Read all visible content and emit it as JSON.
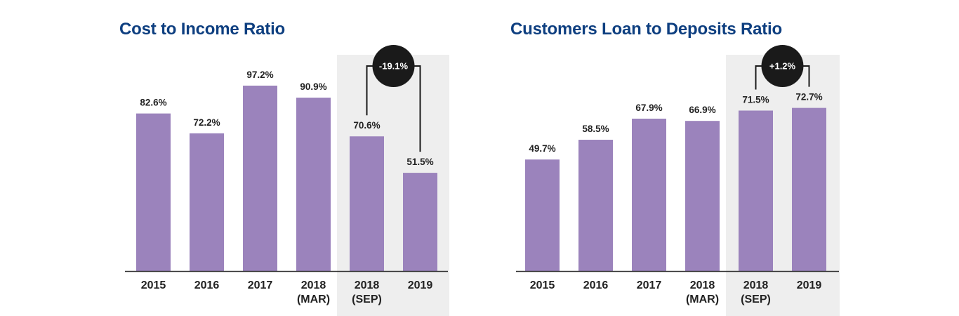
{
  "chart_data": [
    {
      "type": "bar",
      "title": "Cost to Income Ratio",
      "categories": [
        [
          "2015"
        ],
        [
          "2016"
        ],
        [
          "2017"
        ],
        [
          "2018",
          "(MAR)"
        ],
        [
          "2018",
          "(SEP)"
        ],
        [
          "2019"
        ]
      ],
      "values": [
        82.6,
        72.2,
        97.2,
        90.9,
        70.6,
        51.5
      ],
      "value_labels": [
        "82.6%",
        "72.2%",
        "97.2%",
        "90.9%",
        "70.6%",
        "51.5%"
      ],
      "ylim": [
        0,
        120
      ],
      "highlight_categories": [
        4,
        5
      ],
      "comparison": {
        "from": 4,
        "to": 5,
        "label": "-19.1%"
      },
      "bar_color": "#9b83bc",
      "highlight_bg": "#eeeeee",
      "title_color": "#0e3f80",
      "badge_color": "#1a1a1a",
      "grid": false
    },
    {
      "type": "bar",
      "title": "Customers Loan to Deposits Ratio",
      "categories": [
        [
          "2015"
        ],
        [
          "2016"
        ],
        [
          "2017"
        ],
        [
          "2018",
          "(MAR)"
        ],
        [
          "2018",
          "(SEP)"
        ],
        [
          "2019"
        ]
      ],
      "values": [
        49.7,
        58.5,
        67.9,
        66.9,
        71.5,
        72.7
      ],
      "value_labels": [
        "49.7%",
        "58.5%",
        "67.9%",
        "66.9%",
        "71.5%",
        "72.7%"
      ],
      "ylim": [
        0,
        102
      ],
      "highlight_categories": [
        4,
        5
      ],
      "comparison": {
        "from": 4,
        "to": 5,
        "label": "+1.2%"
      },
      "bar_color": "#9b83bc",
      "highlight_bg": "#eeeeee",
      "title_color": "#0e3f80",
      "badge_color": "#1a1a1a",
      "grid": false
    }
  ]
}
